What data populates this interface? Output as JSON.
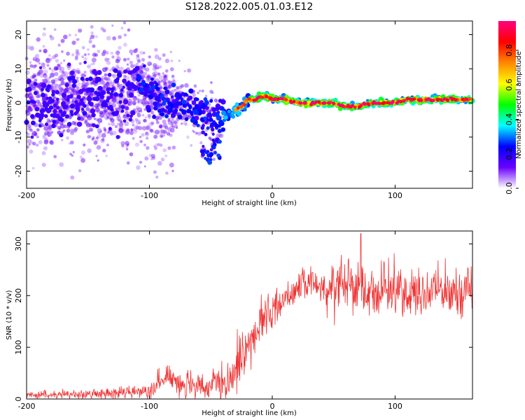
{
  "title": "S128.2022.005.01.03.E12",
  "chart_data": [
    {
      "type": "heatmap",
      "xlabel": "Height of straight line (km)",
      "ylabel": "Frequency (Hz)",
      "xlim": [
        -200,
        163
      ],
      "ylim": [
        -25,
        24
      ],
      "xticks": [
        -200,
        -100,
        0,
        100
      ],
      "yticks": [
        -20,
        -10,
        0,
        10,
        20
      ],
      "colorbar": {
        "label": "Normalized spectral amplitude",
        "range": [
          0,
          0.97
        ],
        "ticks": [
          "0.0",
          "0.2",
          "0.4",
          "0.6",
          "0.8"
        ],
        "colors": [
          "#ffffff",
          "#6a00ff",
          "#0000ff",
          "#00ffff",
          "#00ff00",
          "#ffff00",
          "#ff8800",
          "#ff0000",
          "#ff0080"
        ]
      },
      "ridge": {
        "x": [
          -200,
          -180,
          -160,
          -140,
          -120,
          -110,
          -100,
          -90,
          -80,
          -70,
          -60,
          -50,
          -45,
          -40,
          -35,
          -30,
          -25,
          -20,
          -15,
          -10,
          -5,
          0,
          10,
          20,
          30,
          40,
          50,
          60,
          70,
          80,
          90,
          100,
          110,
          120,
          130,
          140,
          150,
          163
        ],
        "y": [
          0,
          0,
          1,
          1,
          1,
          6,
          3,
          1,
          1,
          -1,
          -3,
          -4,
          -4,
          -4,
          -3,
          -2,
          -1,
          1,
          1,
          2,
          2,
          1,
          1,
          0,
          0,
          0,
          0,
          -1,
          -1,
          0,
          0,
          0,
          1,
          1,
          1,
          1,
          1,
          1
        ]
      }
    },
    {
      "type": "line",
      "xlabel": "Height of straight line (km)",
      "ylabel": "SNR (10 * v/v)",
      "xlim": [
        -200,
        163
      ],
      "ylim": [
        0,
        325
      ],
      "xticks": [
        -200,
        -100,
        0,
        100
      ],
      "yticks": [
        0,
        100,
        200,
        300
      ],
      "color": "#ee3333",
      "envelope": {
        "x": [
          -200,
          -180,
          -160,
          -140,
          -120,
          -110,
          -100,
          -95,
          -90,
          -85,
          -80,
          -75,
          -70,
          -65,
          -60,
          -55,
          -50,
          -45,
          -40,
          -35,
          -30,
          -25,
          -20,
          -15,
          -10,
          -5,
          0,
          5,
          10,
          15,
          20,
          25,
          30,
          35,
          40,
          45,
          50,
          55,
          60,
          65,
          70,
          75,
          80,
          90,
          100,
          110,
          120,
          130,
          140,
          150,
          163
        ],
        "y": [
          8,
          8,
          9,
          10,
          12,
          14,
          20,
          28,
          35,
          40,
          45,
          30,
          25,
          22,
          18,
          20,
          25,
          30,
          20,
          25,
          60,
          85,
          100,
          120,
          150,
          165,
          165,
          185,
          195,
          205,
          215,
          220,
          225,
          225,
          215,
          210,
          220,
          230,
          235,
          225,
          215,
          210,
          205,
          210,
          215,
          205,
          200,
          210,
          210,
          205,
          215
        ]
      },
      "noise": {
        "x": [
          -200,
          -110,
          -100,
          -40,
          -30,
          0,
          40,
          50,
          163
        ],
        "amplitude": [
          6,
          10,
          18,
          30,
          45,
          30,
          22,
          45,
          40
        ]
      },
      "max": {
        "x": 72,
        "y": 320
      }
    }
  ]
}
